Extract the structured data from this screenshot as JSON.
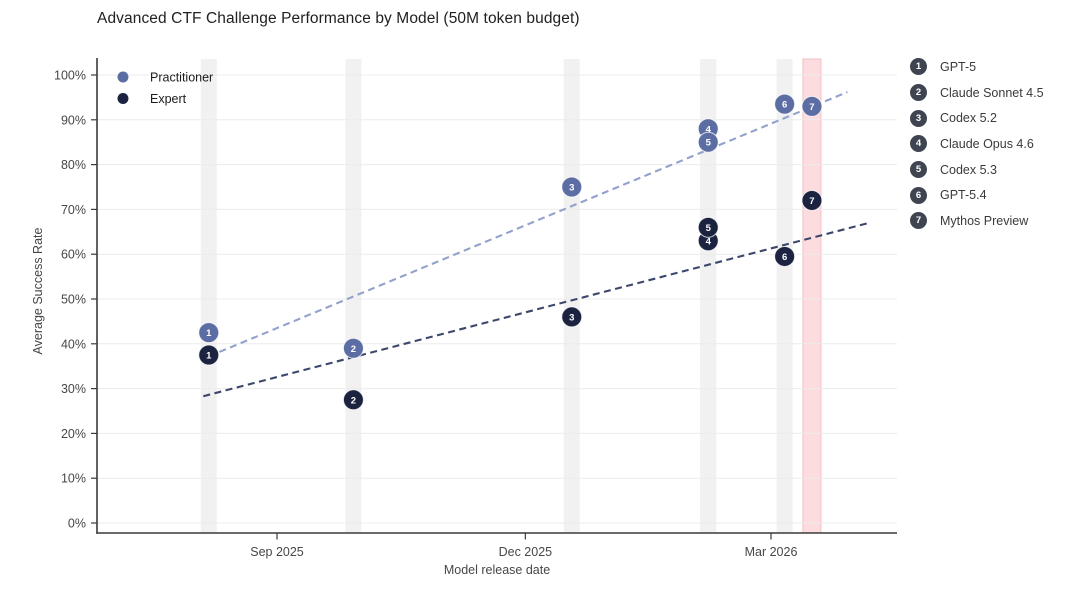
{
  "title": "Advanced CTF Challenge Performance by Model (50M token budget)",
  "chart_data": {
    "type": "scatter",
    "title": "Advanced CTF Challenge Performance by Model (50M token budget)",
    "xlabel": "Model release date",
    "ylabel": "Average Success Rate",
    "x_axis": {
      "epoch": "2025-09-01",
      "ticks": [
        {
          "label": "Sep 2025",
          "date": "2025-09-01"
        },
        {
          "label": "Dec 2025",
          "date": "2025-12-01"
        },
        {
          "label": "Mar 2026",
          "date": "2026-03-01"
        }
      ]
    },
    "y_axis": {
      "min": 0,
      "max": 100,
      "tick_step": 10,
      "tick_suffix": "%"
    },
    "models": [
      {
        "num": 1,
        "name": "GPT-5",
        "release_date": "2025-08-07",
        "highlight": false
      },
      {
        "num": 2,
        "name": "Claude Sonnet 4.5",
        "release_date": "2025-09-29",
        "highlight": false
      },
      {
        "num": 3,
        "name": "Codex 5.2",
        "release_date": "2025-12-18",
        "highlight": false
      },
      {
        "num": 4,
        "name": "Claude Opus 4.6",
        "release_date": "2026-02-06",
        "highlight": false
      },
      {
        "num": 5,
        "name": "Codex 5.3",
        "release_date": "2026-02-06",
        "highlight": false
      },
      {
        "num": 6,
        "name": "GPT-5.4",
        "release_date": "2026-03-06",
        "highlight": false
      },
      {
        "num": 7,
        "name": "Mythos Preview",
        "release_date": "2026-03-16",
        "highlight": true
      }
    ],
    "series": [
      {
        "name": "Practitioner",
        "color": "#5b6da3",
        "values": [
          42.5,
          39,
          75,
          88,
          85,
          93.5,
          93
        ]
      },
      {
        "name": "Expert",
        "color": "#1c2340",
        "values": [
          37.5,
          27.5,
          46,
          63,
          66,
          59.5,
          72
        ]
      }
    ],
    "trendlines": [
      {
        "series": "Practitioner",
        "color": "#93a2cc",
        "from": {
          "date": "2025-08-07",
          "value": 37.2
        },
        "to": {
          "date": "2026-03-29",
          "value": 96.2
        }
      },
      {
        "series": "Expert",
        "color": "#3d476b",
        "from": {
          "date": "2025-08-05",
          "value": 28.3
        },
        "to": {
          "date": "2026-04-06",
          "value": 67.0
        }
      }
    ],
    "release_bands": {
      "color": "#f1f1f1",
      "highlight_color": "#fcdcde",
      "highlight_border": "#f4bfc5"
    },
    "legend_position": "upper left",
    "grid": "horizontal"
  },
  "style_colors": {
    "grid": "#ececec",
    "spine": "#3a3a3a",
    "tick_label": "#474747",
    "legend_text": "#1c1c1c",
    "badge": "#3f4550"
  }
}
